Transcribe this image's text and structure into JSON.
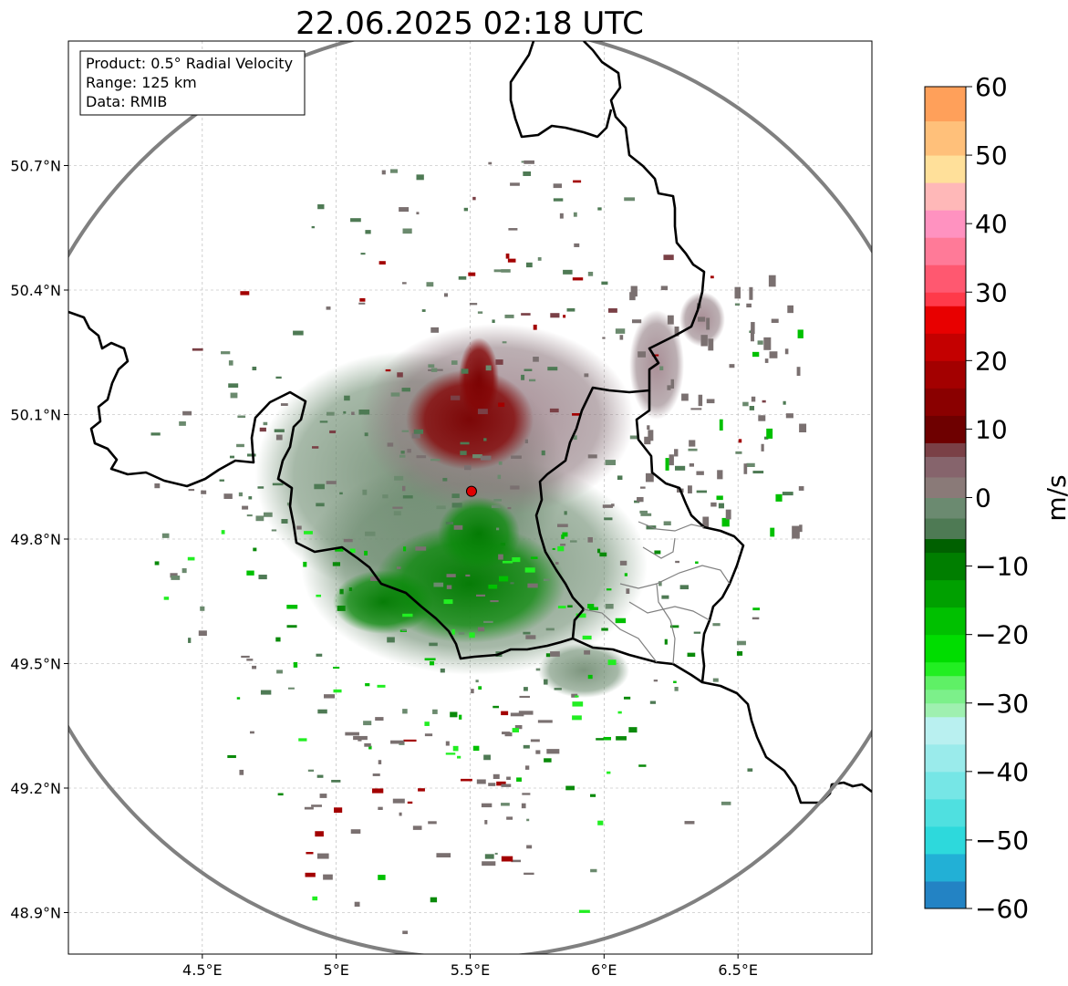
{
  "title": "22.06.2025 02:18 UTC",
  "info_box": {
    "line1": "Product: 0.5° Radial Velocity",
    "line2": "Range: 125 km",
    "line3": "Data: RMIB"
  },
  "map": {
    "lon_ticks": [
      {
        "value": 4.5,
        "label": "4.5°E"
      },
      {
        "value": 5.0,
        "label": "5°E"
      },
      {
        "value": 5.5,
        "label": "5.5°E"
      },
      {
        "value": 6.0,
        "label": "6°E"
      },
      {
        "value": 6.5,
        "label": "6.5°E"
      }
    ],
    "lat_ticks": [
      {
        "value": 50.7,
        "label": "50.7°N"
      },
      {
        "value": 50.4,
        "label": "50.4°N"
      },
      {
        "value": 50.1,
        "label": "50.1°N"
      },
      {
        "value": 49.8,
        "label": "49.8°N"
      },
      {
        "value": 49.5,
        "label": "49.5°N"
      },
      {
        "value": 49.2,
        "label": "49.2°N"
      },
      {
        "value": 48.9,
        "label": "48.9°N"
      }
    ],
    "lon_range": [
      4.0,
      7.0
    ],
    "lat_range": [
      48.8,
      51.0
    ],
    "radar_site": {
      "lon": 5.505,
      "lat": 49.915
    },
    "range_km": 125,
    "colors": {
      "border": "#000000",
      "range_ring": "#808080",
      "grid": "#b0b0b0",
      "site_marker": "#e00000"
    }
  },
  "colorbar": {
    "label": "m/s",
    "min": -60,
    "max": 60,
    "ticks": [
      {
        "value": 60,
        "label": "60"
      },
      {
        "value": 50,
        "label": "50"
      },
      {
        "value": 40,
        "label": "40"
      },
      {
        "value": 30,
        "label": "30"
      },
      {
        "value": 20,
        "label": "20"
      },
      {
        "value": 10,
        "label": "10"
      },
      {
        "value": 0,
        "label": "0"
      },
      {
        "value": -10,
        "label": "−10"
      },
      {
        "value": -20,
        "label": "−20"
      },
      {
        "value": -30,
        "label": "−30"
      },
      {
        "value": -40,
        "label": "−40"
      },
      {
        "value": -50,
        "label": "−50"
      },
      {
        "value": -60,
        "label": "−60"
      }
    ],
    "stops": [
      {
        "from": -60,
        "to": -56,
        "color": "#2383c4"
      },
      {
        "from": -56,
        "to": -52,
        "color": "#22b0d6"
      },
      {
        "from": -52,
        "to": -48,
        "color": "#2dd9dc"
      },
      {
        "from": -48,
        "to": -44,
        "color": "#4fe0e0"
      },
      {
        "from": -44,
        "to": -40,
        "color": "#76e6e6"
      },
      {
        "from": -40,
        "to": -36,
        "color": "#9aebeb"
      },
      {
        "from": -36,
        "to": -32,
        "color": "#b9f0f0"
      },
      {
        "from": -32,
        "to": -30,
        "color": "#9ff0b0"
      },
      {
        "from": -30,
        "to": -28,
        "color": "#7cf08a"
      },
      {
        "from": -28,
        "to": -26,
        "color": "#5ff066"
      },
      {
        "from": -26,
        "to": -24,
        "color": "#22ee22"
      },
      {
        "from": -24,
        "to": -20,
        "color": "#00dd00"
      },
      {
        "from": -20,
        "to": -16,
        "color": "#00c000"
      },
      {
        "from": -16,
        "to": -12,
        "color": "#00a000"
      },
      {
        "from": -12,
        "to": -8,
        "color": "#007e00"
      },
      {
        "from": -8,
        "to": -6,
        "color": "#006000"
      },
      {
        "from": -6,
        "to": -3,
        "color": "#4e7a54"
      },
      {
        "from": -3,
        "to": 0,
        "color": "#6b8a70"
      },
      {
        "from": 0,
        "to": 3,
        "color": "#8a7a78"
      },
      {
        "from": 3,
        "to": 6,
        "color": "#86646c"
      },
      {
        "from": 6,
        "to": 8,
        "color": "#7a4046"
      },
      {
        "from": 8,
        "to": 12,
        "color": "#6e0000"
      },
      {
        "from": 12,
        "to": 16,
        "color": "#8a0000"
      },
      {
        "from": 16,
        "to": 20,
        "color": "#a30000"
      },
      {
        "from": 20,
        "to": 24,
        "color": "#c40000"
      },
      {
        "from": 24,
        "to": 28,
        "color": "#e80000"
      },
      {
        "from": 28,
        "to": 30,
        "color": "#ff3a4a"
      },
      {
        "from": 30,
        "to": 34,
        "color": "#ff5870"
      },
      {
        "from": 34,
        "to": 38,
        "color": "#ff7a98"
      },
      {
        "from": 38,
        "to": 42,
        "color": "#ff92c0"
      },
      {
        "from": 42,
        "to": 46,
        "color": "#ffb8b8"
      },
      {
        "from": 46,
        "to": 50,
        "color": "#ffe09a"
      },
      {
        "from": 50,
        "to": 55,
        "color": "#ffc07a"
      },
      {
        "from": 55,
        "to": 60,
        "color": "#ffa05a"
      }
    ]
  }
}
